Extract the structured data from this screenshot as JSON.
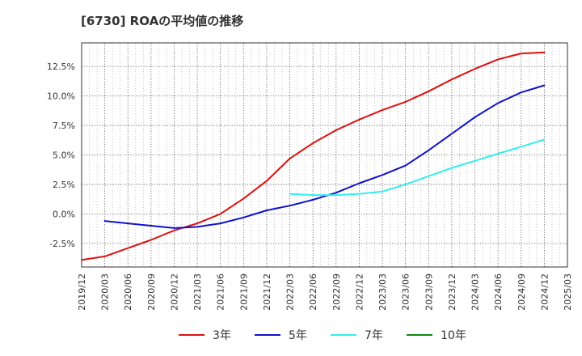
{
  "chart_data": {
    "type": "line",
    "title": "[6730]  ROAの平均値の推移",
    "xlabel": "",
    "ylabel": "",
    "x_ticks": [
      "2019/12",
      "2020/03",
      "2020/06",
      "2020/09",
      "2020/12",
      "2021/03",
      "2021/06",
      "2021/09",
      "2021/12",
      "2022/03",
      "2022/06",
      "2022/09",
      "2022/12",
      "2023/03",
      "2023/06",
      "2023/09",
      "2023/12",
      "2024/03",
      "2024/06",
      "2024/09",
      "2024/12",
      "2025/03"
    ],
    "y_ticks": [
      -2.5,
      0.0,
      2.5,
      5.0,
      7.5,
      10.0,
      12.5
    ],
    "y_tick_labels": [
      "-2.5%",
      "0.0%",
      "2.5%",
      "5.0%",
      "7.5%",
      "10.0%",
      "12.5%"
    ],
    "ylim": [
      -4.5,
      14.5
    ],
    "grid": true,
    "legend_position": "bottom",
    "series": [
      {
        "name": "3年",
        "color": "#dd1111",
        "x": [
          "2019/12",
          "2020/03",
          "2020/06",
          "2020/09",
          "2020/12",
          "2021/03",
          "2021/06",
          "2021/09",
          "2021/12",
          "2022/03",
          "2022/06",
          "2022/09",
          "2022/12",
          "2023/03",
          "2023/06",
          "2023/09",
          "2023/12",
          "2024/03",
          "2024/06",
          "2024/09",
          "2024/12"
        ],
        "values": [
          -3.9,
          -3.6,
          -2.9,
          -2.2,
          -1.4,
          -0.8,
          0.0,
          1.3,
          2.8,
          4.7,
          6.0,
          7.1,
          8.0,
          8.8,
          9.5,
          10.4,
          11.4,
          12.3,
          13.1,
          13.6,
          13.7
        ]
      },
      {
        "name": "5年",
        "color": "#1111cc",
        "x": [
          "2020/03",
          "2020/06",
          "2020/09",
          "2020/12",
          "2021/03",
          "2021/06",
          "2021/09",
          "2021/12",
          "2022/03",
          "2022/06",
          "2022/09",
          "2022/12",
          "2023/03",
          "2023/06",
          "2023/09",
          "2023/12",
          "2024/03",
          "2024/06",
          "2024/09",
          "2024/12"
        ],
        "values": [
          -0.6,
          -0.8,
          -1.0,
          -1.2,
          -1.1,
          -0.8,
          -0.3,
          0.3,
          0.7,
          1.2,
          1.8,
          2.6,
          3.3,
          4.1,
          5.4,
          6.8,
          8.2,
          9.4,
          10.3,
          10.9
        ]
      },
      {
        "name": "7年",
        "color": "#33eeee",
        "x": [
          "2022/03",
          "2022/06",
          "2022/09",
          "2022/12",
          "2023/03",
          "2023/06",
          "2023/09",
          "2023/12",
          "2024/03",
          "2024/06",
          "2024/09",
          "2024/12"
        ],
        "values": [
          1.7,
          1.6,
          1.6,
          1.7,
          1.9,
          2.5,
          3.2,
          3.9,
          4.5,
          5.1,
          5.7,
          6.3
        ]
      },
      {
        "name": "10年",
        "color": "#118811",
        "x": [],
        "values": []
      }
    ]
  }
}
